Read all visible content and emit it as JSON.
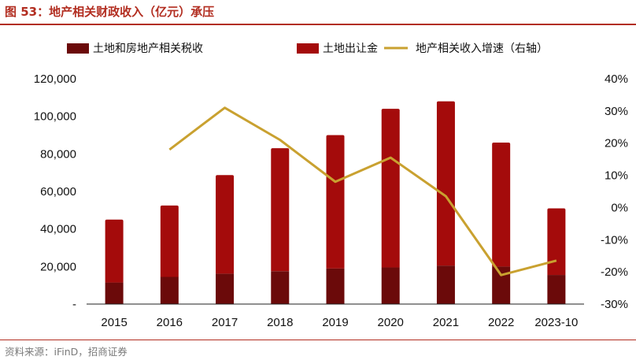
{
  "title": "图 53：地产相关财政收入（亿元）承压",
  "source": "资料来源：iFinD，招商证券",
  "colors": {
    "tax": "#6b0a0a",
    "land": "#a40b0b",
    "growth": "#c9a130",
    "accent": "#b22d20"
  },
  "chart_data": {
    "type": "bar",
    "stacked": true,
    "categories": [
      "2015",
      "2016",
      "2017",
      "2018",
      "2019",
      "2020",
      "2021",
      "2022",
      "2023-10"
    ],
    "series": [
      {
        "name": "土地和房地产相关税收",
        "type": "bar",
        "axis": "left",
        "values": [
          11500,
          14500,
          16200,
          17500,
          19000,
          19500,
          20500,
          20000,
          15500
        ]
      },
      {
        "name": "土地出让金",
        "type": "bar",
        "axis": "left",
        "values": [
          33500,
          38000,
          52500,
          65500,
          71000,
          84500,
          87500,
          66000,
          35500
        ]
      },
      {
        "name": "地产相关收入增速（右轴）",
        "type": "line",
        "axis": "right",
        "values": [
          null,
          18,
          31,
          21,
          8,
          15.5,
          3.5,
          -21,
          -16.5
        ]
      }
    ],
    "y_left": {
      "ticks": [
        "-",
        "20,000",
        "40,000",
        "60,000",
        "80,000",
        "100,000",
        "120,000"
      ],
      "lim": [
        0,
        120000
      ]
    },
    "y_right": {
      "ticks": [
        "-30%",
        "-20%",
        "-10%",
        "0%",
        "10%",
        "20%",
        "30%",
        "40%"
      ],
      "lim": [
        -30,
        40
      ]
    },
    "legend_position": "top",
    "grid": false
  }
}
